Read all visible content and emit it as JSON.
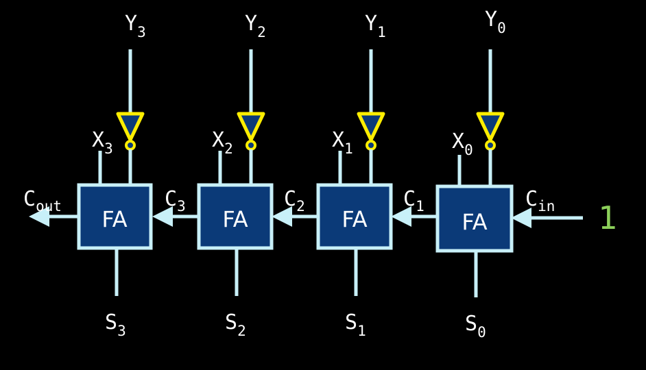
{
  "diagram": {
    "adders": [
      {
        "label": "FA",
        "x_in": {
          "base": "X",
          "sub": "3"
        },
        "y_in": {
          "base": "Y",
          "sub": "3"
        },
        "sum": {
          "base": "S",
          "sub": "3"
        }
      },
      {
        "label": "FA",
        "x_in": {
          "base": "X",
          "sub": "2"
        },
        "y_in": {
          "base": "Y",
          "sub": "2"
        },
        "sum": {
          "base": "S",
          "sub": "2"
        }
      },
      {
        "label": "FA",
        "x_in": {
          "base": "X",
          "sub": "1"
        },
        "y_in": {
          "base": "Y",
          "sub": "1"
        },
        "sum": {
          "base": "S",
          "sub": "1"
        }
      },
      {
        "label": "FA",
        "x_in": {
          "base": "X",
          "sub": "0"
        },
        "y_in": {
          "base": "Y",
          "sub": "0"
        },
        "sum": {
          "base": "S",
          "sub": "0"
        }
      }
    ],
    "carries": [
      {
        "base": "C",
        "sub": "out"
      },
      {
        "base": "C",
        "sub": "3"
      },
      {
        "base": "C",
        "sub": "2"
      },
      {
        "base": "C",
        "sub": "1"
      },
      {
        "base": "C",
        "sub": "in"
      }
    ],
    "carry_in_value": "1",
    "colors": {
      "background": "#000000",
      "wire": "#c8f0f8",
      "adder_fill": "#0b3a78",
      "inverter_outline": "#ffee00",
      "constant_one": "#8cd05a"
    }
  }
}
